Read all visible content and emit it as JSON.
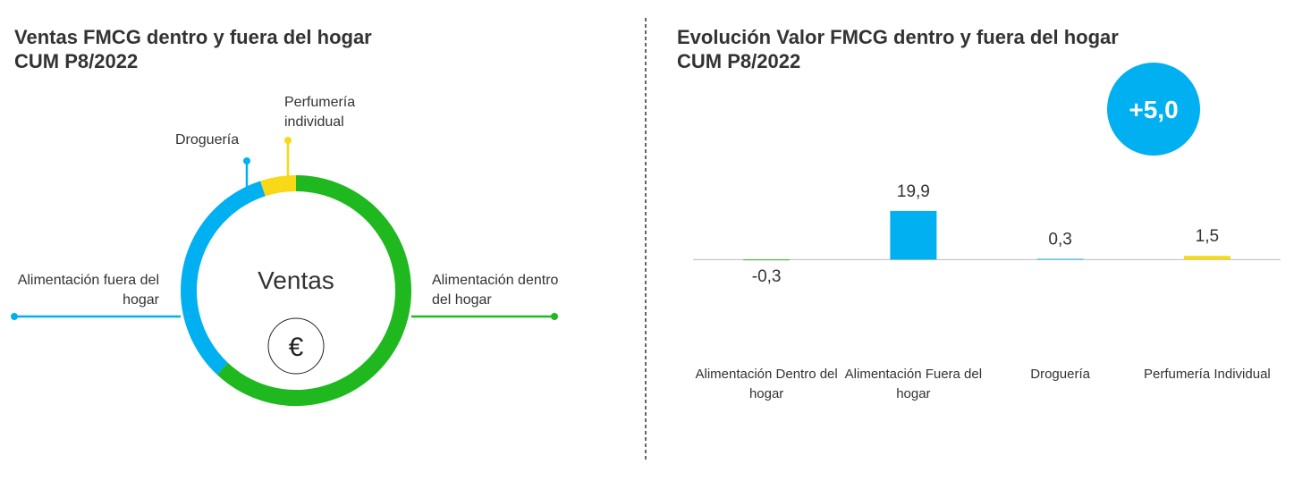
{
  "chart_data": [
    {
      "type": "donut",
      "title": "Ventas FMCG dentro y fuera del hogar",
      "subtitle": "CUM P8/2022",
      "center_label": "Ventas",
      "icon": "€",
      "categories": [
        "Alimentación dentro del hogar",
        "Alimentación fuera del hogar",
        "Droguería",
        "Perfumería individual"
      ],
      "values": [
        62,
        27,
        6,
        5
      ],
      "colors": [
        "#1fb81f",
        "#00b0f0",
        "#00b0f0",
        "#f7d917"
      ]
    },
    {
      "type": "bar",
      "title": "Evolución Valor FMCG dentro y fuera del hogar",
      "subtitle": "CUM P8/2022",
      "total": 5.0,
      "total_label": "+5,0",
      "categories": [
        "Alimentación Dentro del hogar",
        "Alimentación Fuera del hogar",
        "Droguería",
        "Perfumería Individual"
      ],
      "values": [
        -0.3,
        19.9,
        0.3,
        1.5
      ],
      "value_labels": [
        "-0,3",
        "19,9",
        "0,3",
        "1,5"
      ],
      "colors": [
        "#1fb81f",
        "#00b0f0",
        "#00b0f0",
        "#f7d917"
      ],
      "ylim": [
        -5,
        25
      ]
    }
  ]
}
